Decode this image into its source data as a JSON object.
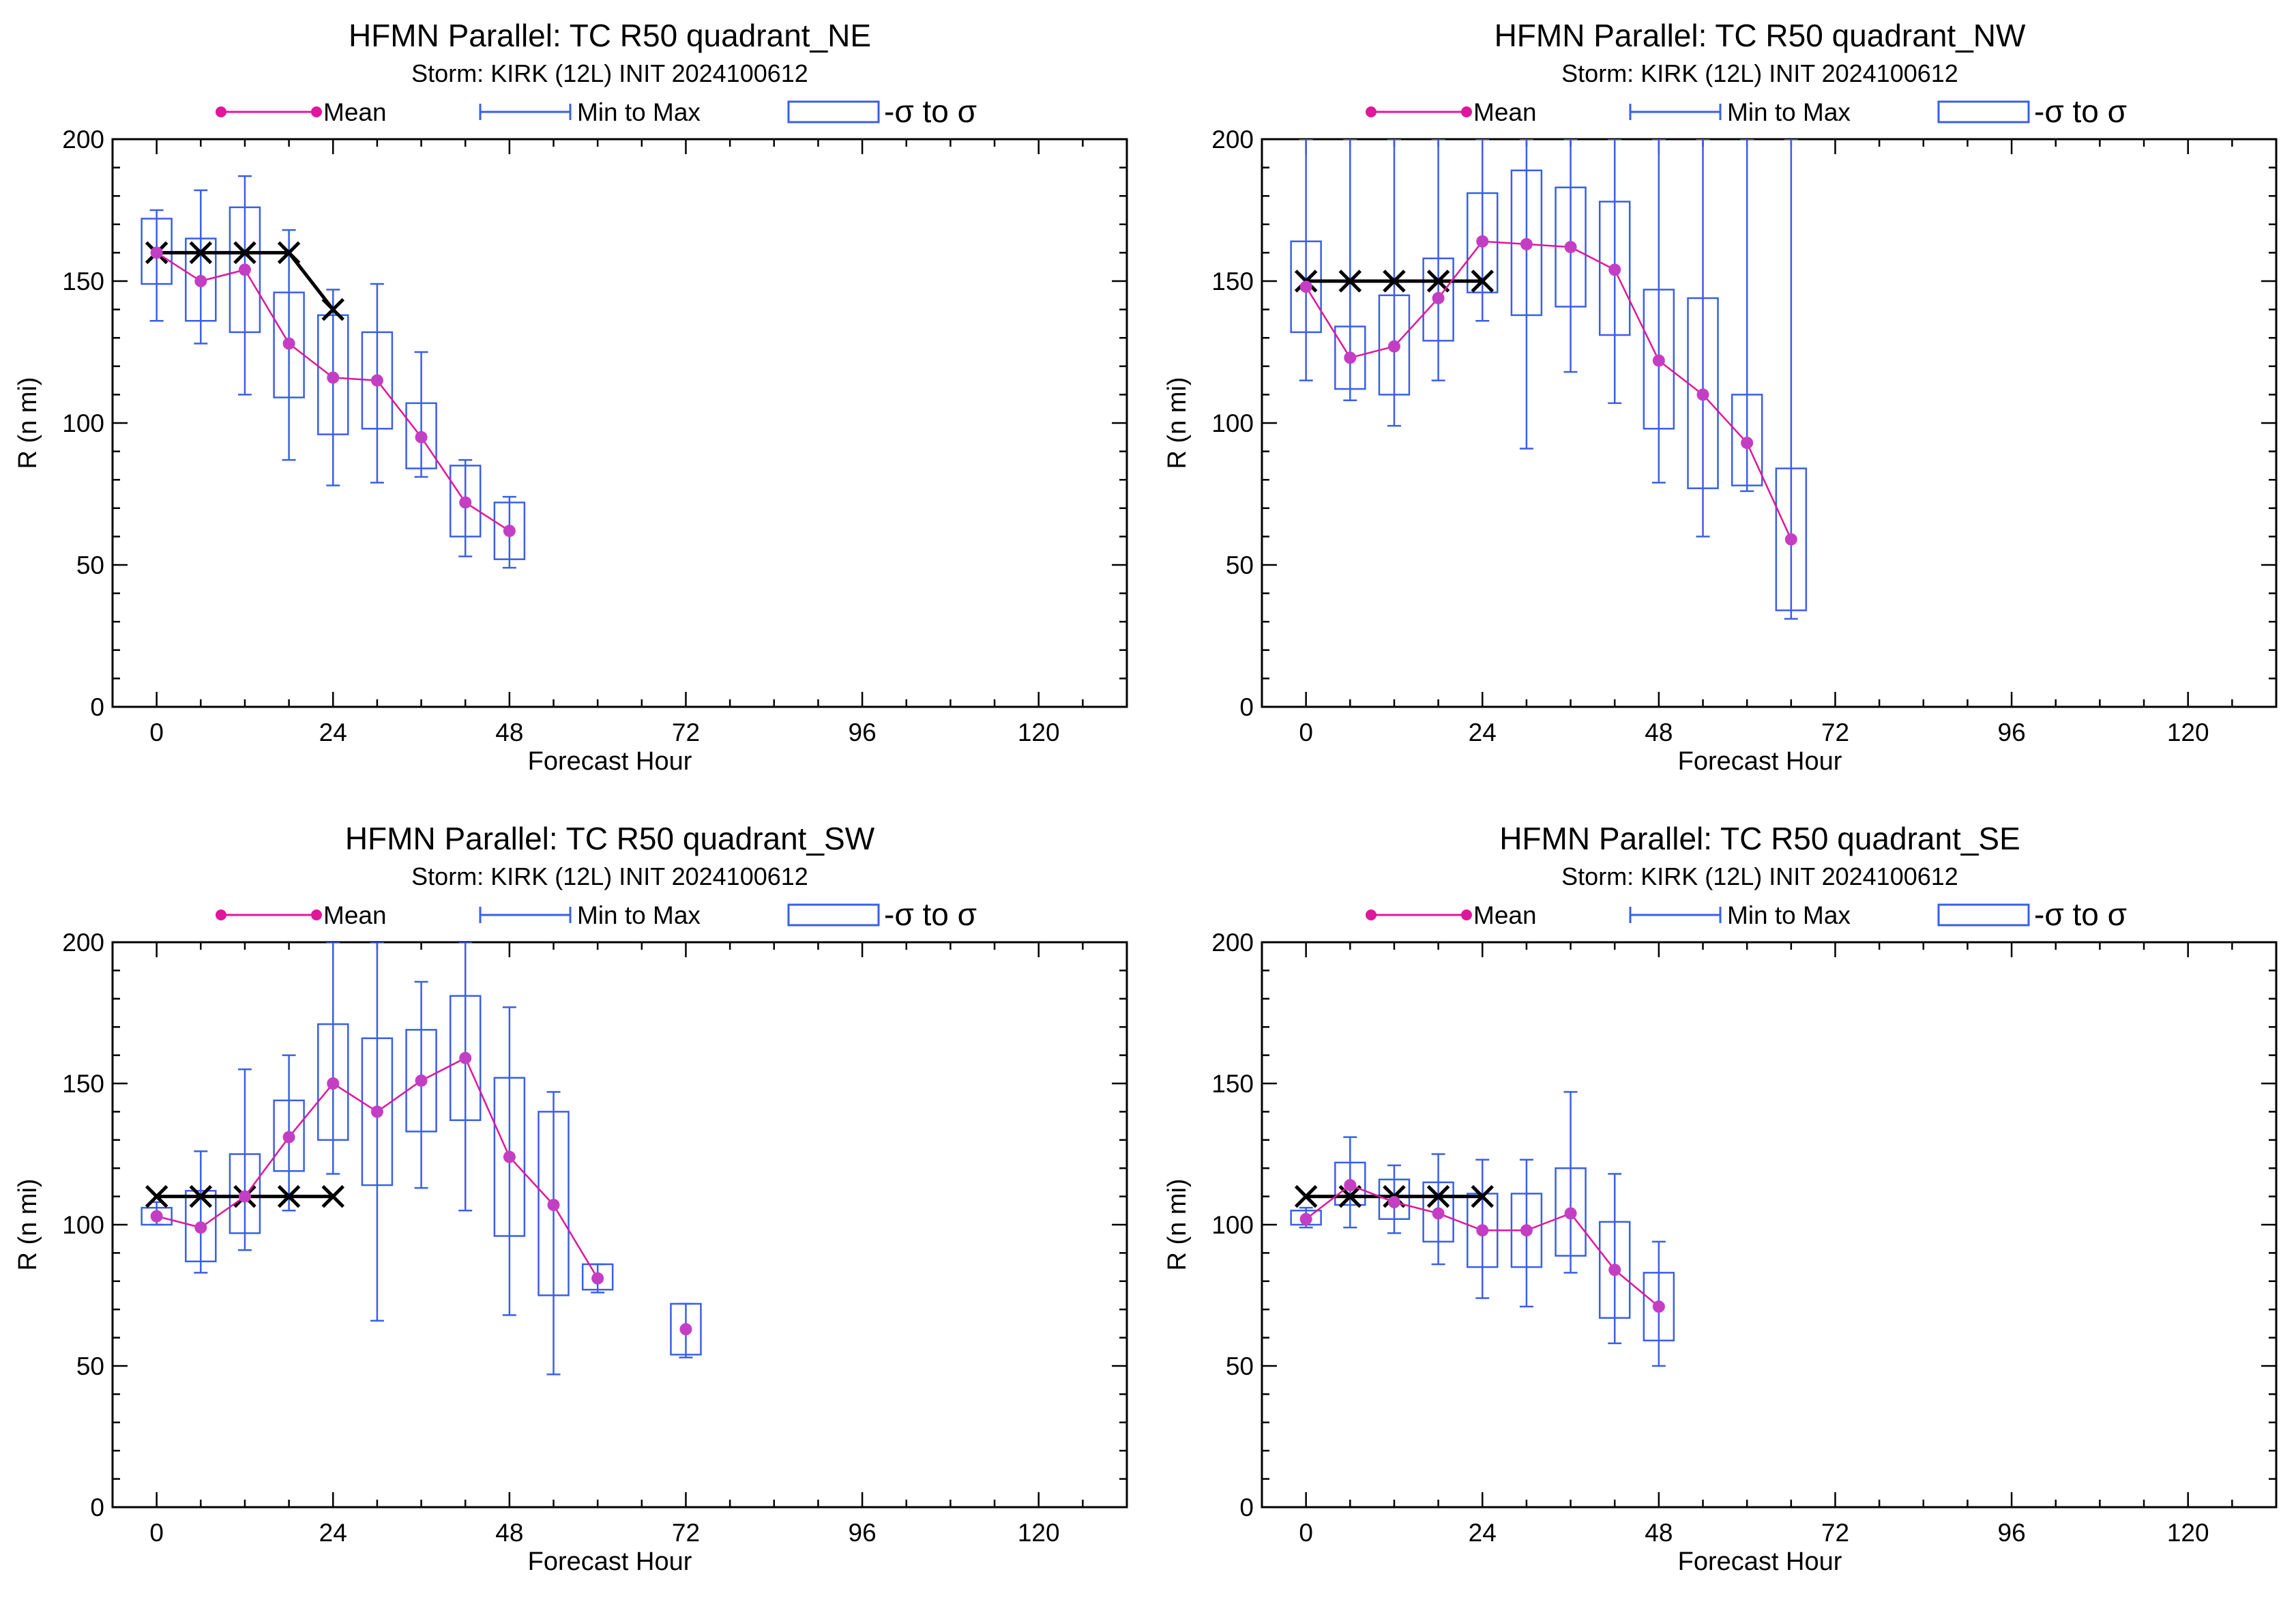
{
  "colors": {
    "mean": "#e0169c",
    "mean_marker": "#c43ec4",
    "spread": "#3a5fe6",
    "best_track": "#000000"
  },
  "legend": {
    "mean": "Mean",
    "minmax": "Min to Max",
    "sigma": "-σ to σ"
  },
  "chart_data": [
    {
      "type": "line",
      "title": "HFMN Parallel: TC  R50 quadrant_NE",
      "subtitle": "Storm: KIRK (12L) INIT 2024100612",
      "xlabel": "Forecast Hour",
      "ylabel": "R (n mi)",
      "xlim": [
        -6,
        132
      ],
      "ylim": [
        0,
        200
      ],
      "xticks": [
        0,
        24,
        48,
        72,
        96,
        120
      ],
      "yticks": [
        0,
        50,
        100,
        150,
        200
      ],
      "grid": false,
      "legend_position": "top",
      "series": [
        {
          "name": "Mean",
          "x": [
            0,
            6,
            12,
            18,
            24,
            30,
            36,
            42,
            48
          ],
          "y": [
            160,
            150,
            154,
            128,
            116,
            115,
            95,
            72,
            62
          ]
        },
        {
          "name": "Min to Max",
          "x": [
            0,
            6,
            12,
            18,
            24,
            30,
            36,
            42,
            48
          ],
          "low": [
            136,
            128,
            110,
            87,
            78,
            79,
            81,
            53,
            49
          ],
          "high": [
            175,
            182,
            187,
            168,
            147,
            149,
            125,
            87,
            74
          ]
        },
        {
          "name": "-σ to σ",
          "x": [
            0,
            6,
            12,
            18,
            24,
            30,
            36,
            42,
            48
          ],
          "low": [
            149,
            136,
            132,
            109,
            96,
            98,
            84,
            60,
            52
          ],
          "high": [
            172,
            165,
            176,
            146,
            138,
            132,
            107,
            85,
            72
          ]
        },
        {
          "x": [
            0,
            6,
            12,
            18,
            24
          ],
          "y": [
            160,
            160,
            160,
            160,
            140
          ]
        }
      ]
    },
    {
      "type": "line",
      "title": "HFMN Parallel: TC  R50 quadrant_NW",
      "subtitle": "Storm: KIRK (12L) INIT 2024100612",
      "xlabel": "Forecast Hour",
      "ylabel": "R (n mi)",
      "xlim": [
        -6,
        132
      ],
      "ylim": [
        0,
        200
      ],
      "xticks": [
        0,
        24,
        48,
        72,
        96,
        120
      ],
      "yticks": [
        0,
        50,
        100,
        150,
        200
      ],
      "grid": false,
      "legend_position": "top",
      "series": [
        {
          "name": "Mean",
          "x": [
            0,
            6,
            12,
            18,
            24,
            30,
            36,
            42,
            48,
            54,
            60,
            66
          ],
          "y": [
            148,
            123,
            127,
            144,
            164,
            163,
            162,
            154,
            122,
            110,
            93,
            59
          ]
        },
        {
          "name": "Min to Max",
          "x": [
            0,
            6,
            12,
            18,
            24,
            30,
            36,
            42,
            48,
            54,
            60,
            66
          ],
          "low": [
            115,
            108,
            99,
            115,
            136,
            91,
            118,
            107,
            79,
            60,
            76,
            31
          ]
        },
        {
          "name": "-σ to σ",
          "x": [
            0,
            6,
            12,
            18,
            24,
            30,
            36,
            42,
            48,
            54,
            60,
            66
          ],
          "low": [
            132,
            112,
            110,
            129,
            146,
            138,
            141,
            131,
            98,
            77,
            78,
            34
          ],
          "high": [
            164,
            134,
            145,
            158,
            181,
            189,
            183,
            178,
            147,
            144,
            110,
            84
          ]
        },
        {
          "x": [
            0,
            6,
            12,
            18,
            24
          ],
          "y": [
            150,
            150,
            150,
            150,
            150
          ]
        }
      ]
    },
    {
      "type": "line",
      "title": "HFMN Parallel: TC  R50 quadrant_SW",
      "subtitle": "Storm: KIRK (12L) INIT 2024100612",
      "xlabel": "Forecast Hour",
      "ylabel": "R (n mi)",
      "xlim": [
        -6,
        132
      ],
      "ylim": [
        0,
        200
      ],
      "xticks": [
        0,
        24,
        48,
        72,
        96,
        120
      ],
      "yticks": [
        0,
        50,
        100,
        150,
        200
      ],
      "grid": false,
      "legend_position": "top",
      "series": [
        {
          "name": "Mean",
          "x": [
            0,
            6,
            12,
            18,
            24,
            30,
            36,
            42,
            48,
            54,
            60
          ],
          "y": [
            103,
            99,
            110,
            131,
            150,
            140,
            151,
            159,
            124,
            107,
            81
          ]
        },
        {
          "x": [
            72
          ],
          "y": [
            63
          ]
        },
        {
          "name": "Min to Max",
          "x": [
            0,
            6,
            12,
            18,
            24,
            30,
            36,
            42,
            48,
            54,
            60,
            72
          ],
          "low": [
            100,
            83,
            91,
            105,
            118,
            66,
            113,
            105,
            68,
            47,
            76,
            53
          ],
          "high": [
            108,
            126,
            155,
            160,
            200,
            200,
            186,
            200,
            177,
            147,
            86,
            72
          ]
        },
        {
          "name": "-σ to σ",
          "x": [
            0,
            6,
            12,
            18,
            24,
            30,
            36,
            42,
            48,
            54,
            60,
            72
          ],
          "low": [
            100,
            87,
            97,
            119,
            130,
            114,
            133,
            137,
            96,
            75,
            77,
            54
          ],
          "high": [
            106,
            112,
            125,
            144,
            171,
            166,
            169,
            181,
            152,
            140,
            86,
            72
          ]
        },
        {
          "x": [
            0,
            6,
            12,
            18,
            24
          ],
          "y": [
            110,
            110,
            110,
            110,
            110
          ]
        }
      ]
    },
    {
      "type": "line",
      "title": "HFMN Parallel: TC  R50 quadrant_SE",
      "subtitle": "Storm: KIRK (12L) INIT 2024100612",
      "xlabel": "Forecast Hour",
      "ylabel": "R (n mi)",
      "xlim": [
        -6,
        132
      ],
      "ylim": [
        0,
        200
      ],
      "xticks": [
        0,
        24,
        48,
        72,
        96,
        120
      ],
      "yticks": [
        0,
        50,
        100,
        150,
        200
      ],
      "grid": false,
      "legend_position": "top",
      "series": [
        {
          "name": "Mean",
          "x": [
            0,
            6,
            12,
            18,
            24,
            30,
            36,
            42,
            48
          ],
          "y": [
            102,
            114,
            108,
            104,
            98,
            98,
            104,
            84,
            71
          ]
        },
        {
          "name": "Min to Max",
          "x": [
            0,
            6,
            12,
            18,
            24,
            30,
            36,
            42,
            48
          ],
          "low": [
            99,
            99,
            97,
            86,
            74,
            71,
            83,
            58,
            50
          ],
          "high": [
            106,
            131,
            121,
            125,
            123,
            123,
            147,
            118,
            94
          ]
        },
        {
          "name": "-σ to σ",
          "x": [
            0,
            6,
            12,
            18,
            24,
            30,
            36,
            42,
            48
          ],
          "low": [
            100,
            107,
            102,
            94,
            85,
            85,
            89,
            67,
            59
          ],
          "high": [
            105,
            122,
            116,
            115,
            111,
            111,
            120,
            101,
            83
          ]
        },
        {
          "x": [
            0,
            6,
            12,
            18,
            24
          ],
          "y": [
            110,
            110,
            110,
            110,
            110
          ]
        }
      ]
    }
  ]
}
